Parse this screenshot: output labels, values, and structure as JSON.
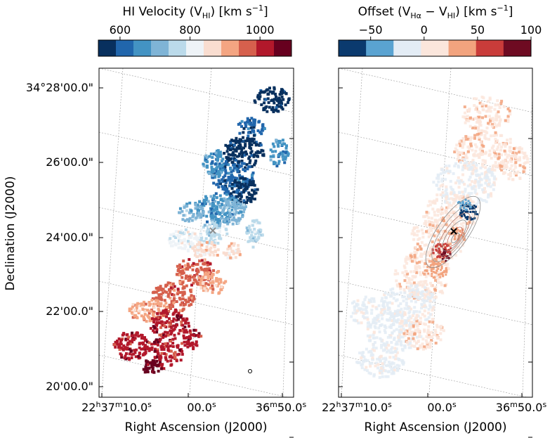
{
  "chart_data": [
    {
      "type": "heatmap",
      "colorbar": {
        "title": "HI Velocity (V",
        "title_sub": "HI",
        "title_end": ") [km s",
        "title_sup": "−1",
        "title_close": "]",
        "ticks": [
          {
            "value": 600,
            "label": "600"
          },
          {
            "value": 800,
            "label": "800"
          },
          {
            "value": 1000,
            "label": "1000"
          }
        ],
        "vmin": 538,
        "vmax": 1090,
        "n_bins": 11,
        "colors": [
          "#08305e",
          "#2166ac",
          "#4393c3",
          "#7fb4d6",
          "#bbdaea",
          "#eef3f7",
          "#f9ddd0",
          "#f4a582",
          "#d6604d",
          "#b2182b",
          "#67001f"
        ]
      },
      "xlabel": "Right Ascension (J2000)",
      "ylabel": "Declination (J2000)",
      "x_ticks": [
        {
          "h": "22",
          "m": "37",
          "s": "10.0",
          "suffix": "s"
        },
        {
          "label": "00.0",
          "suffix": "s"
        },
        {
          "m": "36",
          "s": "50.0",
          "suffix": "s"
        }
      ],
      "y_ticks": [
        "34°28′00.0″",
        "26′00.0″",
        "24′00.0″",
        "22′00.0″",
        "20′00.0″"
      ],
      "y_ticks_display": [
        "34°28'00.0\"",
        "26'00.0\"",
        "24'00.0\"",
        "22'00.0\"",
        "20'00.0\""
      ],
      "center_marker": "×",
      "beam_marker": "circle"
    },
    {
      "type": "heatmap",
      "colorbar": {
        "title": "Offset (V",
        "title_sub1": "Hα",
        "title_mid": " − V",
        "title_sub2": "HI",
        "title_end": ") [km s",
        "title_sup": "−1",
        "title_close": "]",
        "ticks": [
          {
            "value": -50,
            "label": "−50"
          },
          {
            "value": 0,
            "label": "0"
          },
          {
            "value": 50,
            "label": "50"
          },
          {
            "value": 100,
            "label": "100"
          }
        ],
        "vmin": -80,
        "vmax": 100,
        "n_bins": 7,
        "colors": [
          "#0b3a6e",
          "#5aa3d1",
          "#e3ecf5",
          "#fbe6dc",
          "#f2a37e",
          "#c93c3a",
          "#6e0b22"
        ]
      },
      "xlabel": "Right Ascension (J2000)",
      "x_ticks": [
        {
          "h": "22",
          "m": "37",
          "s": "10.0",
          "suffix": "s"
        },
        {
          "label": "00.0",
          "suffix": "s"
        },
        {
          "m": "36",
          "s": "50.0",
          "suffix": "s"
        }
      ],
      "center_marker": "×",
      "contours": "Hα contours (grey/red)"
    }
  ]
}
